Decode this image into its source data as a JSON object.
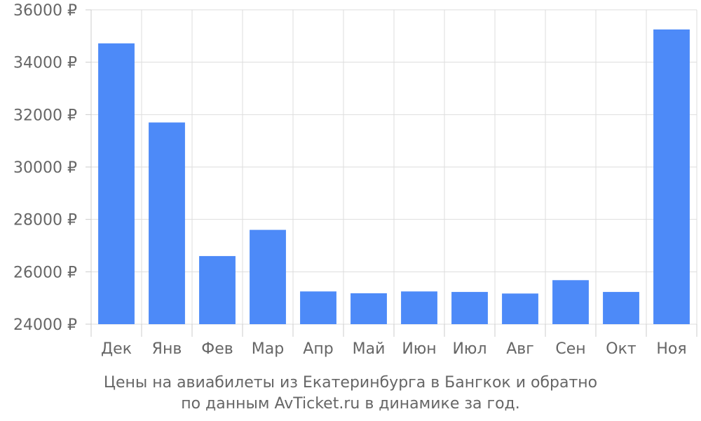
{
  "chart_data": {
    "type": "bar",
    "title": "",
    "xlabel": "",
    "ylabel": "",
    "categories": [
      "Дек",
      "Янв",
      "Фев",
      "Мар",
      "Апр",
      "Май",
      "Июн",
      "Июл",
      "Авг",
      "Сен",
      "Окт",
      "Ноя"
    ],
    "values": [
      34720,
      31700,
      26600,
      27600,
      25250,
      25180,
      25250,
      25230,
      25170,
      25680,
      25230,
      35250
    ],
    "ylim": [
      24000,
      36000
    ],
    "yticks": [
      24000,
      26000,
      28000,
      30000,
      32000,
      34000,
      36000
    ],
    "ytick_suffix": " ₽",
    "grid": true,
    "bar_color": "#4d8af8",
    "grid_color": "#dddddd"
  },
  "caption": {
    "line1": "Цены на авиабилеты из Екатеринбурга в Бангкок и обратно",
    "line2": "по данным AvTicket.ru в динамике за год."
  }
}
